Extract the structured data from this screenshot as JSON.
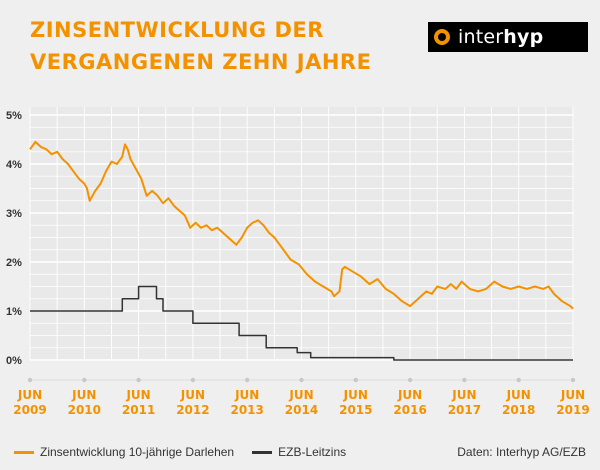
{
  "header": {
    "title_line1": "ZINSENTWICKLUNG DER",
    "title_line2": "VERGANGENEN ZEHN JAHRE",
    "logo_text_light": "inter",
    "logo_text_bold": "hyp"
  },
  "colors": {
    "title": "#f39200",
    "series_mortgage": "#f39200",
    "series_ecb": "#333333",
    "background": "#efefef",
    "grid": "#ffffff"
  },
  "chart_data": {
    "type": "line",
    "grid": true,
    "ylim": [
      0,
      5
    ],
    "y_ticks": [
      "0%",
      "1%",
      "2%",
      "3%",
      "4%",
      "5%"
    ],
    "y_tick_values": [
      0,
      1,
      2,
      3,
      4,
      5
    ],
    "x_ticks": [
      {
        "month": "JUN",
        "year": "2009",
        "x": 2009.5
      },
      {
        "month": "JUN",
        "year": "2010",
        "x": 2010.5
      },
      {
        "month": "JUN",
        "year": "2011",
        "x": 2011.5
      },
      {
        "month": "JUN",
        "year": "2012",
        "x": 2012.5
      },
      {
        "month": "JUN",
        "year": "2013",
        "x": 2013.5
      },
      {
        "month": "JUN",
        "year": "2014",
        "x": 2014.5
      },
      {
        "month": "JUN",
        "year": "2015",
        "x": 2015.5
      },
      {
        "month": "JUN",
        "year": "2016",
        "x": 2016.5
      },
      {
        "month": "JUN",
        "year": "2017",
        "x": 2017.5
      },
      {
        "month": "JUN",
        "year": "2018",
        "x": 2018.5
      },
      {
        "month": "JUN",
        "year": "2019",
        "x": 2019.5
      }
    ],
    "xlim": [
      2009.5,
      2019.5
    ],
    "series": [
      {
        "name": "Zinsentwicklung 10-jährige Darlehen",
        "step": false,
        "points": [
          [
            2009.5,
            4.3
          ],
          [
            2009.6,
            4.45
          ],
          [
            2009.7,
            4.35
          ],
          [
            2009.8,
            4.3
          ],
          [
            2009.9,
            4.2
          ],
          [
            2010.0,
            4.25
          ],
          [
            2010.1,
            4.1
          ],
          [
            2010.2,
            4.0
          ],
          [
            2010.3,
            3.85
          ],
          [
            2010.4,
            3.7
          ],
          [
            2010.5,
            3.6
          ],
          [
            2010.55,
            3.5
          ],
          [
            2010.6,
            3.25
          ],
          [
            2010.7,
            3.45
          ],
          [
            2010.8,
            3.6
          ],
          [
            2010.9,
            3.85
          ],
          [
            2011.0,
            4.05
          ],
          [
            2011.1,
            4.0
          ],
          [
            2011.2,
            4.15
          ],
          [
            2011.25,
            4.4
          ],
          [
            2011.3,
            4.3
          ],
          [
            2011.35,
            4.1
          ],
          [
            2011.45,
            3.9
          ],
          [
            2011.55,
            3.7
          ],
          [
            2011.65,
            3.35
          ],
          [
            2011.75,
            3.45
          ],
          [
            2011.85,
            3.35
          ],
          [
            2011.95,
            3.2
          ],
          [
            2012.05,
            3.3
          ],
          [
            2012.15,
            3.15
          ],
          [
            2012.25,
            3.05
          ],
          [
            2012.35,
            2.95
          ],
          [
            2012.45,
            2.7
          ],
          [
            2012.55,
            2.8
          ],
          [
            2012.65,
            2.7
          ],
          [
            2012.75,
            2.75
          ],
          [
            2012.85,
            2.65
          ],
          [
            2012.95,
            2.7
          ],
          [
            2013.05,
            2.6
          ],
          [
            2013.15,
            2.5
          ],
          [
            2013.3,
            2.35
          ],
          [
            2013.4,
            2.5
          ],
          [
            2013.5,
            2.7
          ],
          [
            2013.6,
            2.8
          ],
          [
            2013.7,
            2.85
          ],
          [
            2013.8,
            2.75
          ],
          [
            2013.9,
            2.6
          ],
          [
            2014.0,
            2.5
          ],
          [
            2014.1,
            2.35
          ],
          [
            2014.2,
            2.2
          ],
          [
            2014.3,
            2.05
          ],
          [
            2014.45,
            1.95
          ],
          [
            2014.6,
            1.75
          ],
          [
            2014.75,
            1.6
          ],
          [
            2014.9,
            1.5
          ],
          [
            2015.05,
            1.4
          ],
          [
            2015.1,
            1.3
          ],
          [
            2015.2,
            1.4
          ],
          [
            2015.25,
            1.85
          ],
          [
            2015.3,
            1.9
          ],
          [
            2015.45,
            1.8
          ],
          [
            2015.6,
            1.7
          ],
          [
            2015.75,
            1.55
          ],
          [
            2015.9,
            1.65
          ],
          [
            2016.05,
            1.45
          ],
          [
            2016.2,
            1.35
          ],
          [
            2016.35,
            1.2
          ],
          [
            2016.5,
            1.1
          ],
          [
            2016.6,
            1.2
          ],
          [
            2016.7,
            1.3
          ],
          [
            2016.8,
            1.4
          ],
          [
            2016.9,
            1.35
          ],
          [
            2017.0,
            1.5
          ],
          [
            2017.15,
            1.45
          ],
          [
            2017.25,
            1.55
          ],
          [
            2017.35,
            1.45
          ],
          [
            2017.45,
            1.6
          ],
          [
            2017.6,
            1.45
          ],
          [
            2017.75,
            1.4
          ],
          [
            2017.9,
            1.45
          ],
          [
            2018.05,
            1.6
          ],
          [
            2018.2,
            1.5
          ],
          [
            2018.35,
            1.45
          ],
          [
            2018.5,
            1.5
          ],
          [
            2018.65,
            1.45
          ],
          [
            2018.8,
            1.5
          ],
          [
            2018.95,
            1.45
          ],
          [
            2019.05,
            1.5
          ],
          [
            2019.15,
            1.35
          ],
          [
            2019.3,
            1.2
          ],
          [
            2019.45,
            1.1
          ],
          [
            2019.5,
            1.05
          ]
        ]
      },
      {
        "name": "EZB-Leitzins",
        "step": true,
        "points": [
          [
            2009.5,
            1.0
          ],
          [
            2011.2,
            1.25
          ],
          [
            2011.5,
            1.5
          ],
          [
            2011.83,
            1.25
          ],
          [
            2011.95,
            1.0
          ],
          [
            2012.5,
            0.75
          ],
          [
            2013.35,
            0.5
          ],
          [
            2013.85,
            0.25
          ],
          [
            2014.42,
            0.15
          ],
          [
            2014.67,
            0.05
          ],
          [
            2016.2,
            0.0
          ],
          [
            2019.5,
            0.0
          ]
        ]
      }
    ]
  },
  "legend": {
    "items": [
      {
        "label": "Zinsentwicklung 10-jährige Darlehen",
        "color": "#f39200"
      },
      {
        "label": "EZB-Leitzins",
        "color": "#333333"
      }
    ]
  },
  "source": "Daten: Interhyp AG/EZB"
}
